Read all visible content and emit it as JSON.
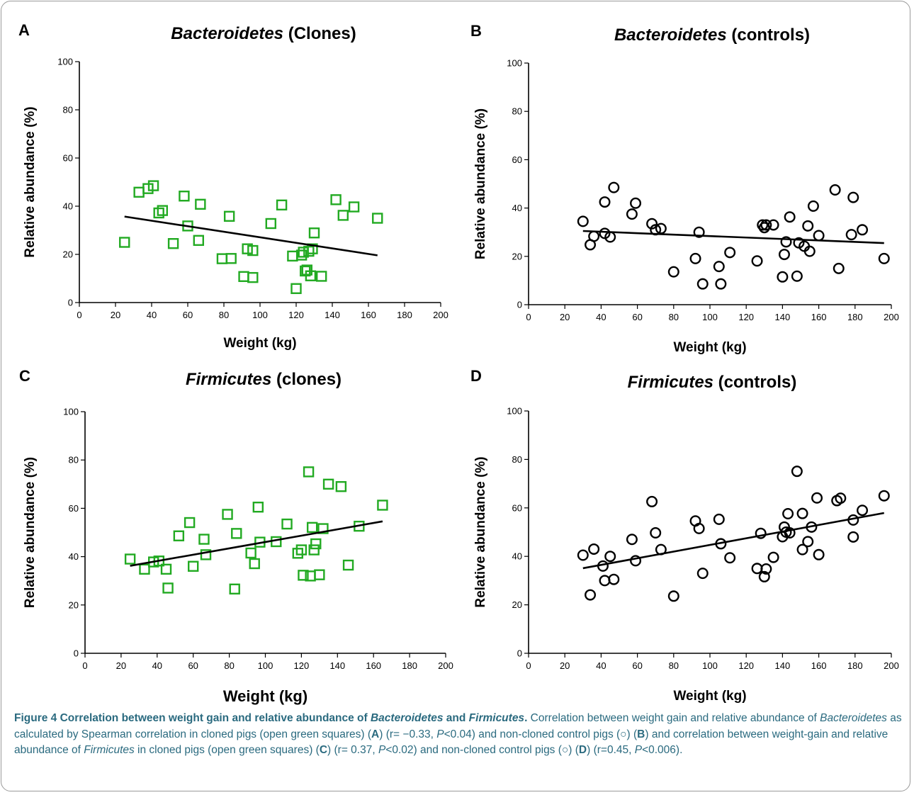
{
  "chart_data": [
    {
      "panel": "A",
      "type": "scatter",
      "title_italic": "Bacteroidetes",
      "title_rest": "(Clones)",
      "xlabel": "Weight (kg)",
      "ylabel": "Relative abundance (%)",
      "xlim": [
        0,
        200
      ],
      "ylim": [
        0,
        100
      ],
      "xticks": [
        0,
        20,
        40,
        60,
        80,
        100,
        120,
        140,
        160,
        180,
        200
      ],
      "yticks": [
        0,
        20,
        40,
        60,
        80,
        100
      ],
      "marker": "square",
      "marker_color": "#22aa22",
      "trend": [
        [
          25,
          35.7
        ],
        [
          165,
          19.6
        ]
      ],
      "series": [
        {
          "x": [
            25,
            33,
            38,
            41,
            44,
            46,
            52,
            58,
            60,
            66,
            67,
            79,
            83,
            84,
            91,
            93,
            96,
            96,
            106,
            112,
            118,
            120,
            123,
            124,
            125,
            126,
            127,
            128,
            129,
            130,
            134,
            142,
            146,
            152,
            165
          ],
          "y": [
            25,
            45.8,
            47.3,
            48.5,
            37.2,
            38.2,
            24.5,
            44.2,
            31.8,
            25.8,
            40.8,
            18.2,
            35.8,
            18.3,
            10.8,
            22.3,
            21.6,
            10.4,
            32.8,
            40.5,
            19.3,
            5.8,
            19.7,
            20.9,
            13.1,
            13.5,
            21.3,
            11.1,
            22.3,
            28.9,
            10.9,
            42.7,
            36.2,
            39.7,
            35
          ]
        }
      ]
    },
    {
      "panel": "B",
      "type": "scatter",
      "title_italic": "Bacteroidetes",
      "title_rest": "(controls)",
      "xlabel": "Weight (kg)",
      "ylabel": "Relative abundance (%)",
      "xlim": [
        0,
        200
      ],
      "ylim": [
        0,
        100
      ],
      "xticks": [
        0,
        20,
        40,
        60,
        80,
        100,
        120,
        140,
        160,
        180,
        200
      ],
      "yticks": [
        0,
        20,
        40,
        60,
        80,
        100
      ],
      "marker": "circle",
      "marker_color": "#000000",
      "trend": [
        [
          30,
          30.5
        ],
        [
          196,
          25.5
        ]
      ],
      "series": [
        {
          "x": [
            30,
            34,
            36,
            42,
            42,
            45,
            47,
            57,
            59,
            68,
            70,
            73,
            80,
            92,
            94,
            96,
            105,
            106,
            111,
            126,
            129,
            130,
            131,
            135,
            140,
            141,
            142,
            144,
            148,
            149,
            152,
            154,
            155,
            157,
            160,
            169,
            171,
            178,
            179,
            184,
            196
          ],
          "y": [
            34.5,
            24.8,
            28.3,
            29.5,
            42.5,
            28,
            48.5,
            37.5,
            42,
            33.5,
            31,
            31.5,
            13.6,
            19.1,
            30,
            8.6,
            15.8,
            8.6,
            21.6,
            18.1,
            33,
            31.9,
            33,
            33,
            11.5,
            20.8,
            26,
            36.3,
            11.8,
            25.6,
            24.2,
            32.6,
            22.1,
            40.8,
            28.6,
            47.5,
            15,
            29,
            44.4,
            31,
            19.1
          ]
        }
      ]
    },
    {
      "panel": "C",
      "type": "scatter",
      "title_italic": "Firmicutes",
      "title_rest": "(clones)",
      "xlabel": "Weight (kg)",
      "ylabel": "Relative abundance (%)",
      "xlim": [
        0,
        200
      ],
      "ylim": [
        0,
        100
      ],
      "xticks": [
        0,
        20,
        40,
        60,
        80,
        100,
        120,
        140,
        160,
        180,
        200
      ],
      "yticks": [
        0,
        20,
        40,
        60,
        80,
        100
      ],
      "marker": "square",
      "marker_color": "#22aa22",
      "trend": [
        [
          25,
          36.2
        ],
        [
          165,
          54.6
        ]
      ],
      "series": [
        {
          "x": [
            25,
            33,
            38,
            41,
            45,
            46,
            52,
            58,
            60,
            66,
            67,
            79,
            83,
            84,
            92,
            94,
            96,
            97,
            106,
            112,
            118,
            120,
            121,
            124,
            125,
            126,
            127,
            128,
            130,
            132,
            135,
            142,
            146,
            152,
            165
          ],
          "y": [
            39,
            34.8,
            37.8,
            38.2,
            34.8,
            27,
            48.6,
            54.1,
            36,
            47.2,
            40.8,
            57.5,
            26.6,
            49.6,
            41.5,
            37.1,
            60.5,
            46,
            46.2,
            53.5,
            41.4,
            42.8,
            32.3,
            75.1,
            32,
            52.1,
            42.8,
            45.3,
            32.5,
            51.6,
            70,
            69,
            36.5,
            52.6,
            61.3
          ]
        }
      ]
    },
    {
      "panel": "D",
      "type": "scatter",
      "title_italic": "Firmicutes",
      "title_rest": "(controls)",
      "xlabel": "Weight (kg)",
      "ylabel": "Relative abundance (%)",
      "xlim": [
        0,
        200
      ],
      "ylim": [
        0,
        100
      ],
      "xticks": [
        0,
        20,
        40,
        60,
        80,
        100,
        120,
        140,
        160,
        180,
        200
      ],
      "yticks": [
        0,
        20,
        40,
        60,
        80,
        100
      ],
      "marker": "circle",
      "marker_color": "#000000",
      "trend": [
        [
          30,
          35.1
        ],
        [
          196,
          57.9
        ]
      ],
      "series": [
        {
          "x": [
            30,
            34,
            36,
            41,
            42,
            45,
            47,
            57,
            59,
            68,
            70,
            73,
            80,
            92,
            94,
            96,
            105,
            106,
            111,
            126,
            128,
            130,
            131,
            135,
            140,
            141,
            142,
            144,
            143,
            148,
            151,
            151,
            154,
            156,
            159,
            160,
            170,
            172,
            179,
            179,
            184,
            196
          ],
          "y": [
            40.5,
            24.1,
            43,
            36,
            30,
            40,
            30.5,
            47,
            38.2,
            62.6,
            49.7,
            42.8,
            23.6,
            54.6,
            51.5,
            33,
            55.3,
            45.2,
            39.4,
            35,
            49.5,
            31.6,
            34.8,
            39.6,
            48.1,
            52.1,
            50,
            49.7,
            57.6,
            75.1,
            57.7,
            42.8,
            46.1,
            52.1,
            64.1,
            40.7,
            63,
            64,
            55,
            48,
            59,
            65
          ]
        }
      ]
    }
  ],
  "caption": {
    "t1": "Figure 4 Correlation between weight gain and relative abundance of ",
    "t2": "Bacteroidetes",
    "t3": " and ",
    "t4": "Firmicutes",
    "t5": ".",
    "t6": " Correlation between weight gain and relative abundance of ",
    "t7": "Bacteroidetes",
    "t8": " as calculated by Spearman correlation in cloned pigs (open green squares) (",
    "t9": "A",
    "t10": ") (r= −0.33, ",
    "t11": "P",
    "t12": "<0.04) and non-cloned control pigs (○) (",
    "t13": "B",
    "t14": ") and correlation between weight-gain and relative abundance of ",
    "t15": "Firmicutes",
    "t16": " in cloned pigs (open green squares) (",
    "t17": "C",
    "t18": ") (r= 0.37, ",
    "t19": "P",
    "t20": "<0.02) and non-cloned control pigs (○) (",
    "t21": "D",
    "t22": ") (r=0.45, ",
    "t23": "P",
    "t24": "<0.006)."
  }
}
